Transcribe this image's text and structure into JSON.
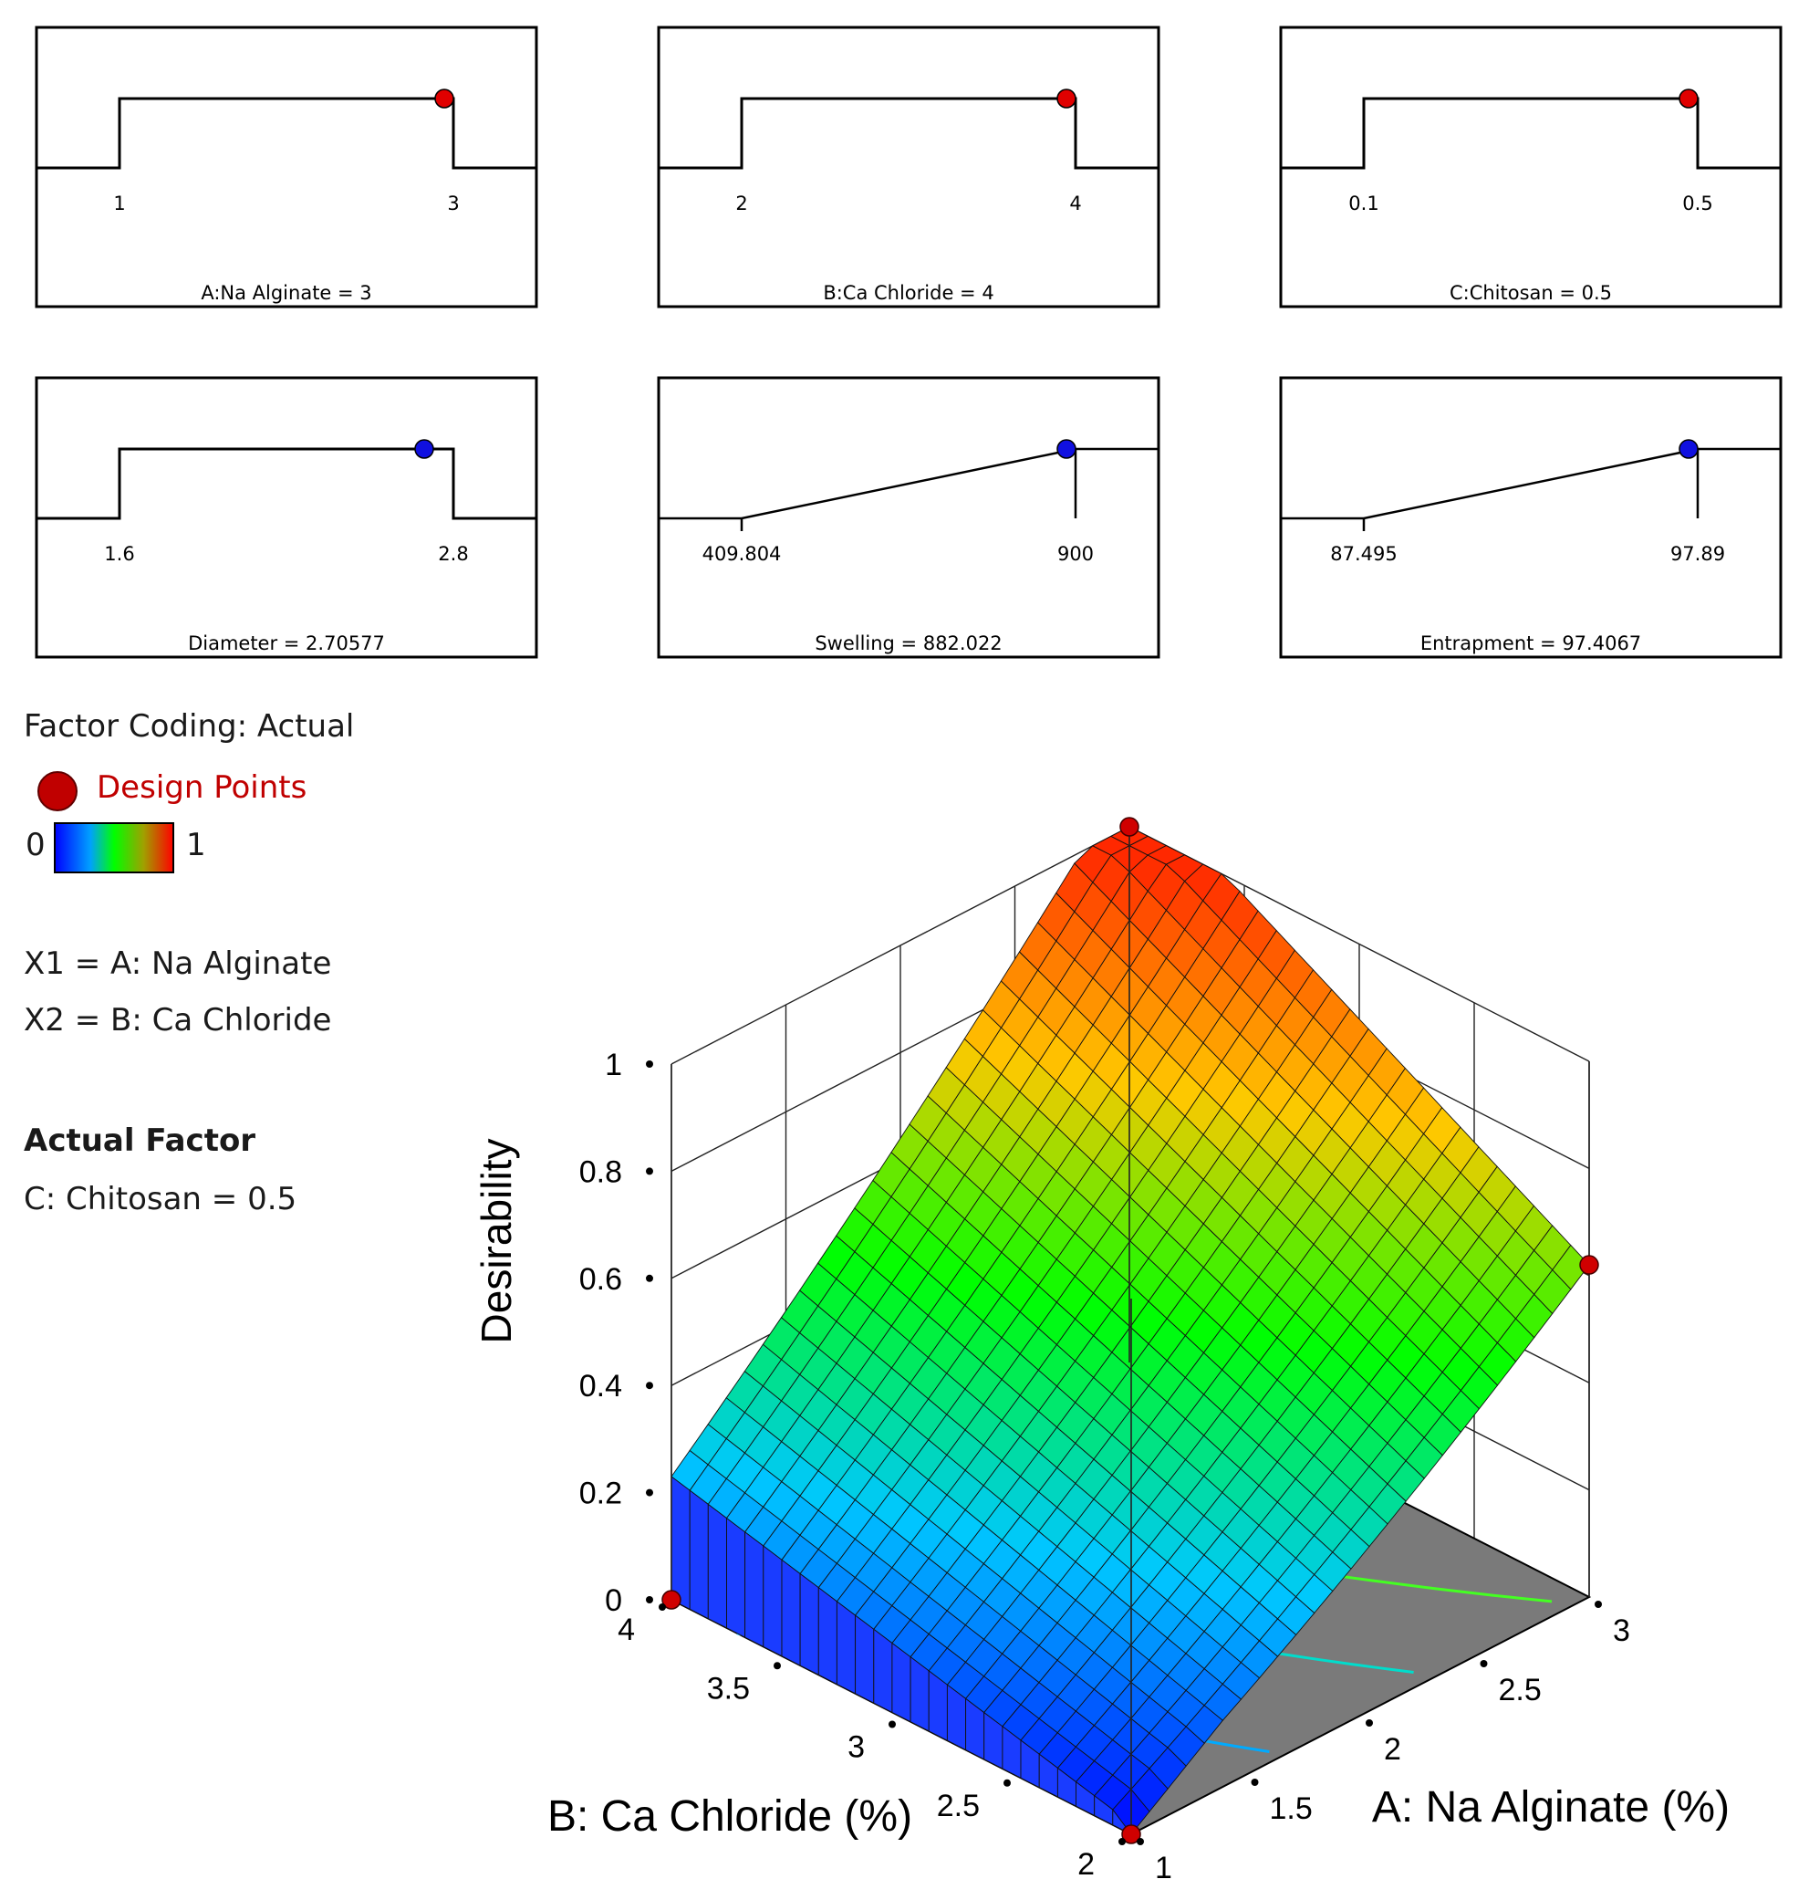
{
  "ramps": [
    {
      "low": "1",
      "high": "3",
      "caption": "A:Na Alginate = 3",
      "type": "step",
      "dot": "#e00000"
    },
    {
      "low": "2",
      "high": "4",
      "caption": "B:Ca Chloride = 4",
      "type": "step",
      "dot": "#e00000"
    },
    {
      "low": "0.1",
      "high": "0.5",
      "caption": "C:Chitosan = 0.5",
      "type": "step",
      "dot": "#e00000"
    },
    {
      "low": "1.6",
      "high": "2.8",
      "caption": "Diameter = 2.70577",
      "type": "step",
      "dot": "#1010e0"
    },
    {
      "low": "409.804",
      "high": "900",
      "caption": "Swelling = 882.022",
      "type": "ramp",
      "dot": "#1010e0"
    },
    {
      "low": "87.495",
      "high": "97.89",
      "caption": "Entrapment = 97.4067",
      "type": "ramp",
      "dot": "#1010e0"
    }
  ],
  "legend": {
    "factor_coding": "Factor Coding: Actual",
    "design_points": "Design Points",
    "scale_min": "0",
    "scale_max": "1",
    "x1": "X1 = A: Na Alginate",
    "x2": "X2 = B: Ca Chloride",
    "actual_factor_title": "Actual Factor",
    "actual_factor_value": "C: Chitosan = 0.5"
  },
  "chart_data": {
    "type": "surface3d",
    "title": "",
    "zlabel": "Desirability",
    "xlabel": "A: Na Alginate (%)",
    "ylabel": "B: Ca Chloride (%)",
    "x_ticks": [
      "1",
      "1.5",
      "2",
      "2.5",
      "3"
    ],
    "y_ticks": [
      "2",
      "2.5",
      "3",
      "3.5",
      "4"
    ],
    "z_ticks": [
      "0",
      "0.2",
      "0.4",
      "0.6",
      "0.8",
      "1"
    ],
    "xlim": [
      1,
      3
    ],
    "ylim": [
      2,
      4
    ],
    "zlim": [
      0,
      1
    ],
    "corner_values": [
      {
        "A": 1,
        "B": 2,
        "desirability": 0
      },
      {
        "A": 3,
        "B": 2,
        "desirability": 0.62
      },
      {
        "A": 1,
        "B": 4,
        "desirability": 0.21
      },
      {
        "A": 3,
        "B": 4,
        "desirability": 1.0
      }
    ],
    "design_points": [
      {
        "A": 3,
        "B": 4,
        "desirability": 1.0
      },
      {
        "A": 3,
        "B": 2,
        "desirability": 0.62
      },
      {
        "A": 1,
        "B": 4,
        "desirability": 0.0
      },
      {
        "A": 1,
        "B": 2,
        "desirability": 0.0
      }
    ],
    "contour_levels": [
      0.2,
      0.4,
      0.6
    ],
    "colors": {
      "low": "#0000ff",
      "mid": "#00ff00",
      "high": "#ff0000",
      "floor": "#7a7a7a",
      "point": "#d00000"
    }
  }
}
